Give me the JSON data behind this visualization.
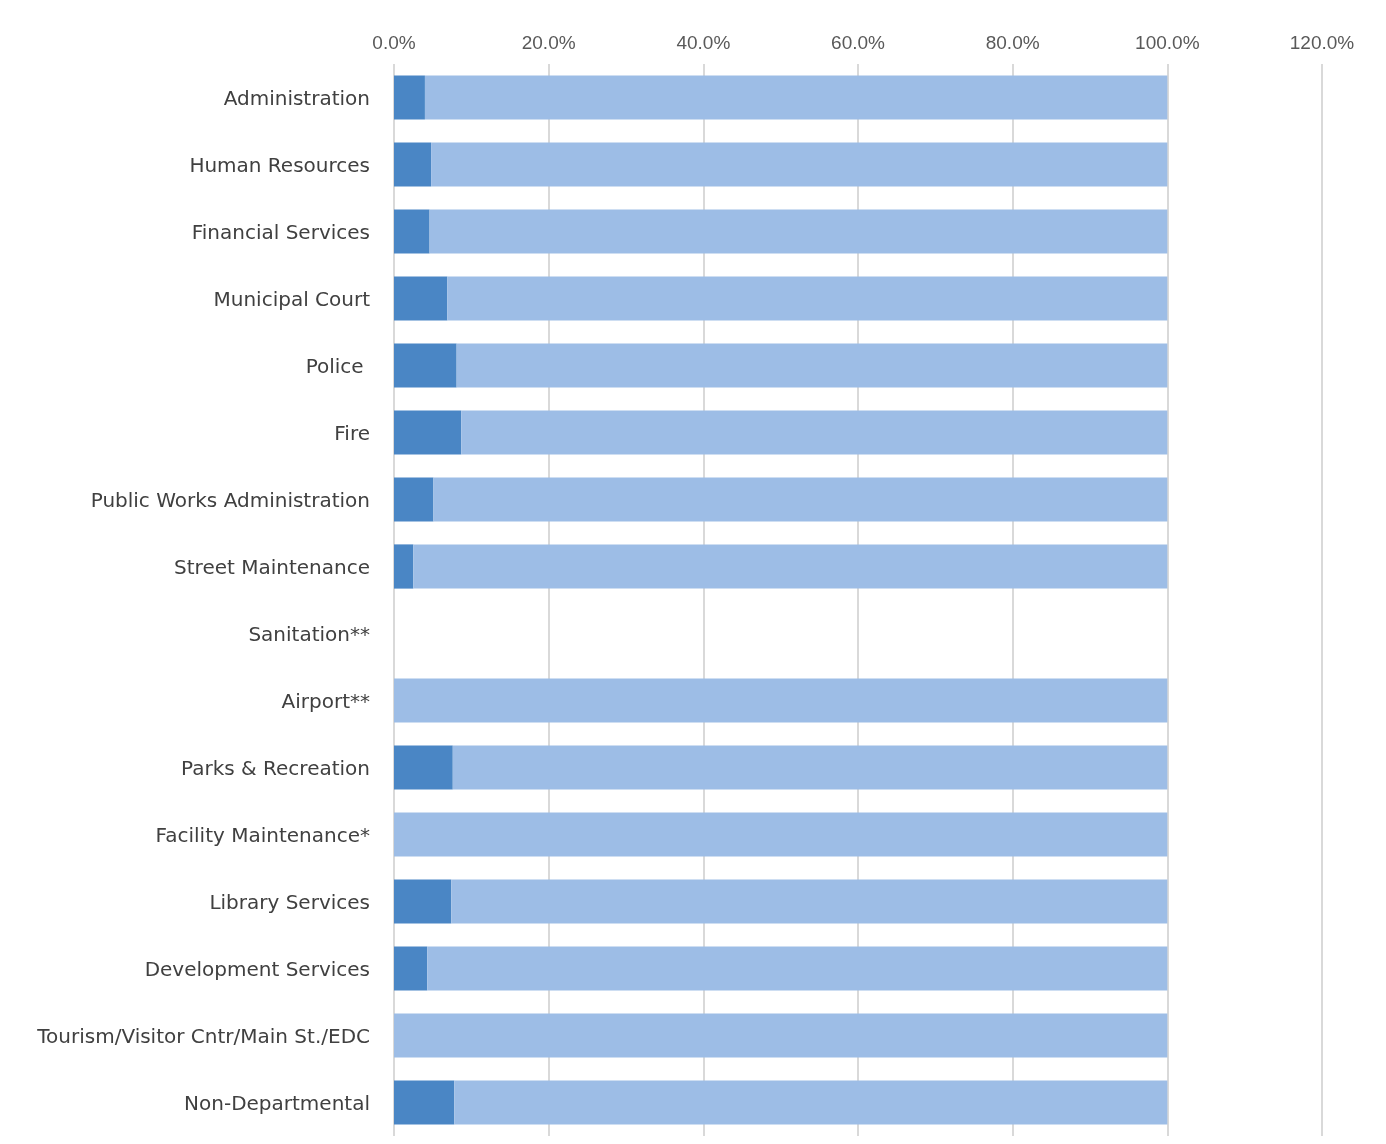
{
  "chart_data": {
    "type": "bar",
    "orientation": "horizontal",
    "stacked": true,
    "grid": "x",
    "categories": [
      "Administration",
      "Human Resources",
      "Financial Services",
      "Municipal Court",
      "Police ",
      "Fire",
      "Public Works Administration",
      "Street Maintenance",
      "Sanitation**",
      "Airport**",
      "Parks & Recreation",
      "Facility Maintenance*",
      "Library Services",
      "Development Services",
      "Tourism/Visitor Cntr/Main St./EDC",
      "Non-Departmental"
    ],
    "series": [
      {
        "color": "#4a86c5",
        "values": [
          4.0,
          4.8,
          4.6,
          6.9,
          8.1,
          8.7,
          5.1,
          2.5,
          null,
          0,
          7.6,
          0,
          7.4,
          4.3,
          0,
          7.8
        ]
      },
      {
        "color": "#9dbde6",
        "values": [
          96.0,
          95.2,
          95.4,
          93.1,
          91.9,
          91.3,
          94.9,
          97.5,
          null,
          100,
          92.4,
          100,
          92.6,
          95.7,
          100,
          92.2
        ]
      }
    ],
    "xlim": [
      0,
      120
    ],
    "xticks": [
      {
        "value": 0,
        "label": "0.0%"
      },
      {
        "value": 20,
        "label": "20.0%"
      },
      {
        "value": 40,
        "label": "40.0%"
      },
      {
        "value": 60,
        "label": "60.0%"
      },
      {
        "value": 80,
        "label": "80.0%"
      },
      {
        "value": 100,
        "label": "100.0%"
      },
      {
        "value": 120,
        "label": "120.0%"
      }
    ]
  }
}
